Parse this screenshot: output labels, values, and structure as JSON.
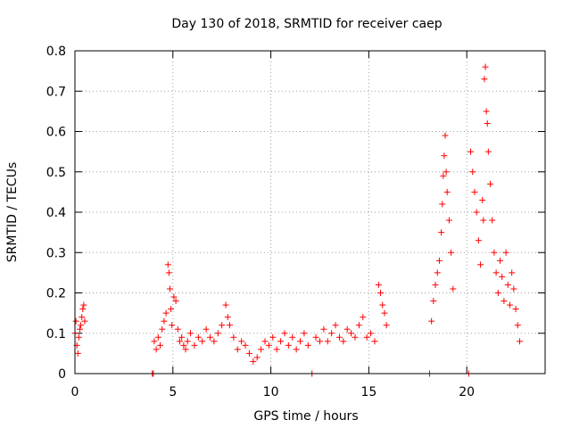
{
  "chart_data": {
    "type": "scatter",
    "title": "Day 130 of 2018, SRMTID for receiver caep",
    "xlabel": "GPS time / hours",
    "ylabel": "SRMTID / TECUs",
    "xlim": [
      0,
      24
    ],
    "ylim": [
      0,
      0.8
    ],
    "xticks": [
      0,
      5,
      10,
      15,
      20
    ],
    "xtick_labels": [
      "0",
      "5",
      "10",
      "15",
      "20"
    ],
    "yticks": [
      0,
      0.1,
      0.2,
      0.3,
      0.4,
      0.5,
      0.6,
      0.7,
      0.8
    ],
    "ytick_labels": [
      "0",
      "0.1",
      "0.2",
      "0.3",
      "0.4",
      "0.5",
      "0.6",
      "0.7",
      "0.8"
    ],
    "grid": true,
    "marker": "+",
    "color": "#ff0000",
    "series": [
      {
        "name": "SRMTID",
        "x": [
          0.0,
          0.05,
          0.1,
          0.15,
          0.2,
          0.25,
          0.3,
          0.35,
          0.4,
          0.45,
          0.5,
          3.95,
          4.0,
          4.05,
          4.15,
          4.25,
          4.35,
          4.45,
          4.55,
          4.65,
          4.75,
          4.8,
          4.85,
          4.9,
          4.95,
          5.05,
          5.15,
          5.25,
          5.35,
          5.45,
          5.55,
          5.65,
          5.75,
          5.9,
          6.1,
          6.3,
          6.5,
          6.7,
          6.9,
          7.1,
          7.3,
          7.5,
          7.7,
          7.8,
          7.9,
          8.1,
          8.3,
          8.5,
          8.7,
          8.9,
          9.1,
          9.3,
          9.5,
          9.7,
          9.9,
          10.1,
          10.3,
          10.5,
          10.7,
          10.9,
          11.1,
          11.3,
          11.5,
          11.7,
          11.9,
          12.1,
          12.3,
          12.5,
          12.7,
          12.9,
          13.1,
          13.3,
          13.5,
          13.7,
          13.9,
          14.1,
          14.3,
          14.5,
          14.7,
          14.9,
          15.1,
          15.3,
          15.5,
          15.6,
          15.7,
          15.8,
          15.9,
          18.1,
          18.2,
          18.3,
          18.4,
          18.5,
          18.6,
          18.7,
          18.75,
          18.8,
          18.85,
          18.9,
          18.95,
          19.0,
          19.1,
          19.2,
          19.3,
          20.1,
          20.2,
          20.3,
          20.4,
          20.5,
          20.6,
          20.7,
          20.8,
          20.85,
          20.9,
          20.95,
          21.0,
          21.05,
          21.1,
          21.2,
          21.3,
          21.4,
          21.5,
          21.6,
          21.7,
          21.8,
          21.9,
          22.0,
          22.1,
          22.2,
          22.3,
          22.4,
          22.5,
          22.6,
          22.7
        ],
        "y": [
          0.1,
          0.13,
          0.07,
          0.05,
          0.09,
          0.11,
          0.12,
          0.14,
          0.16,
          0.17,
          0.13,
          0.0,
          0.0,
          0.08,
          0.06,
          0.09,
          0.07,
          0.11,
          0.13,
          0.15,
          0.27,
          0.25,
          0.21,
          0.16,
          0.12,
          0.19,
          0.18,
          0.11,
          0.08,
          0.09,
          0.07,
          0.06,
          0.08,
          0.1,
          0.07,
          0.09,
          0.08,
          0.11,
          0.09,
          0.08,
          0.1,
          0.12,
          0.17,
          0.14,
          0.12,
          0.09,
          0.06,
          0.08,
          0.07,
          0.05,
          0.03,
          0.04,
          0.06,
          0.08,
          0.07,
          0.09,
          0.06,
          0.08,
          0.1,
          0.07,
          0.09,
          0.06,
          0.08,
          0.1,
          0.07,
          0.0,
          0.09,
          0.08,
          0.11,
          0.08,
          0.1,
          0.12,
          0.09,
          0.08,
          0.11,
          0.1,
          0.09,
          0.12,
          0.14,
          0.09,
          0.1,
          0.08,
          0.22,
          0.2,
          0.17,
          0.15,
          0.12,
          0.0,
          0.13,
          0.18,
          0.22,
          0.25,
          0.28,
          0.35,
          0.42,
          0.49,
          0.54,
          0.59,
          0.5,
          0.45,
          0.38,
          0.3,
          0.21,
          0.0,
          0.55,
          0.5,
          0.45,
          0.4,
          0.33,
          0.27,
          0.43,
          0.38,
          0.73,
          0.76,
          0.65,
          0.62,
          0.55,
          0.47,
          0.38,
          0.3,
          0.25,
          0.2,
          0.28,
          0.24,
          0.18,
          0.3,
          0.22,
          0.17,
          0.25,
          0.21,
          0.16,
          0.12,
          0.08
        ]
      }
    ]
  }
}
